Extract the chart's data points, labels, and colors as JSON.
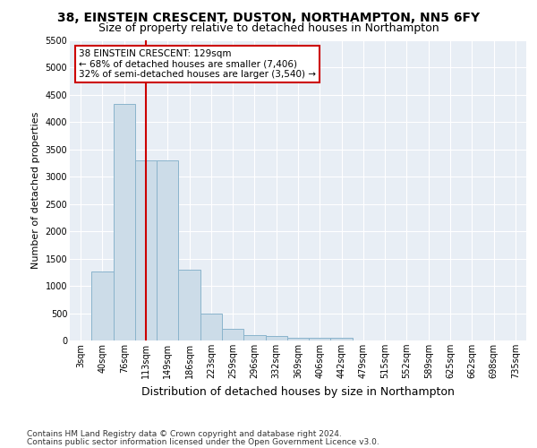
{
  "title": "38, EINSTEIN CRESCENT, DUSTON, NORTHAMPTON, NN5 6FY",
  "subtitle": "Size of property relative to detached houses in Northampton",
  "xlabel": "Distribution of detached houses by size in Northampton",
  "ylabel": "Number of detached properties",
  "categories": [
    "3sqm",
    "40sqm",
    "76sqm",
    "113sqm",
    "149sqm",
    "186sqm",
    "223sqm",
    "259sqm",
    "296sqm",
    "332sqm",
    "369sqm",
    "406sqm",
    "442sqm",
    "479sqm",
    "515sqm",
    "552sqm",
    "589sqm",
    "625sqm",
    "662sqm",
    "698sqm",
    "735sqm"
  ],
  "values": [
    0,
    1270,
    4330,
    3300,
    3300,
    1290,
    490,
    215,
    100,
    80,
    55,
    55,
    50,
    0,
    0,
    0,
    0,
    0,
    0,
    0,
    0
  ],
  "bar_color": "#ccdce8",
  "bar_edge_color": "#8ab4cc",
  "vline_x": 3,
  "vline_color": "#cc0000",
  "annotation_text": "38 EINSTEIN CRESCENT: 129sqm\n← 68% of detached houses are smaller (7,406)\n32% of semi-detached houses are larger (3,540) →",
  "annotation_box_color": "#ffffff",
  "annotation_box_edge_color": "#cc0000",
  "ylim": [
    0,
    5500
  ],
  "yticks": [
    0,
    500,
    1000,
    1500,
    2000,
    2500,
    3000,
    3500,
    4000,
    4500,
    5000,
    5500
  ],
  "footer_line1": "Contains HM Land Registry data © Crown copyright and database right 2024.",
  "footer_line2": "Contains public sector information licensed under the Open Government Licence v3.0.",
  "fig_bg_color": "#ffffff",
  "plot_bg_color": "#e8eef5",
  "title_fontsize": 10,
  "subtitle_fontsize": 9,
  "xlabel_fontsize": 9,
  "ylabel_fontsize": 8,
  "tick_fontsize": 7,
  "annotation_fontsize": 7.5,
  "footer_fontsize": 6.5
}
